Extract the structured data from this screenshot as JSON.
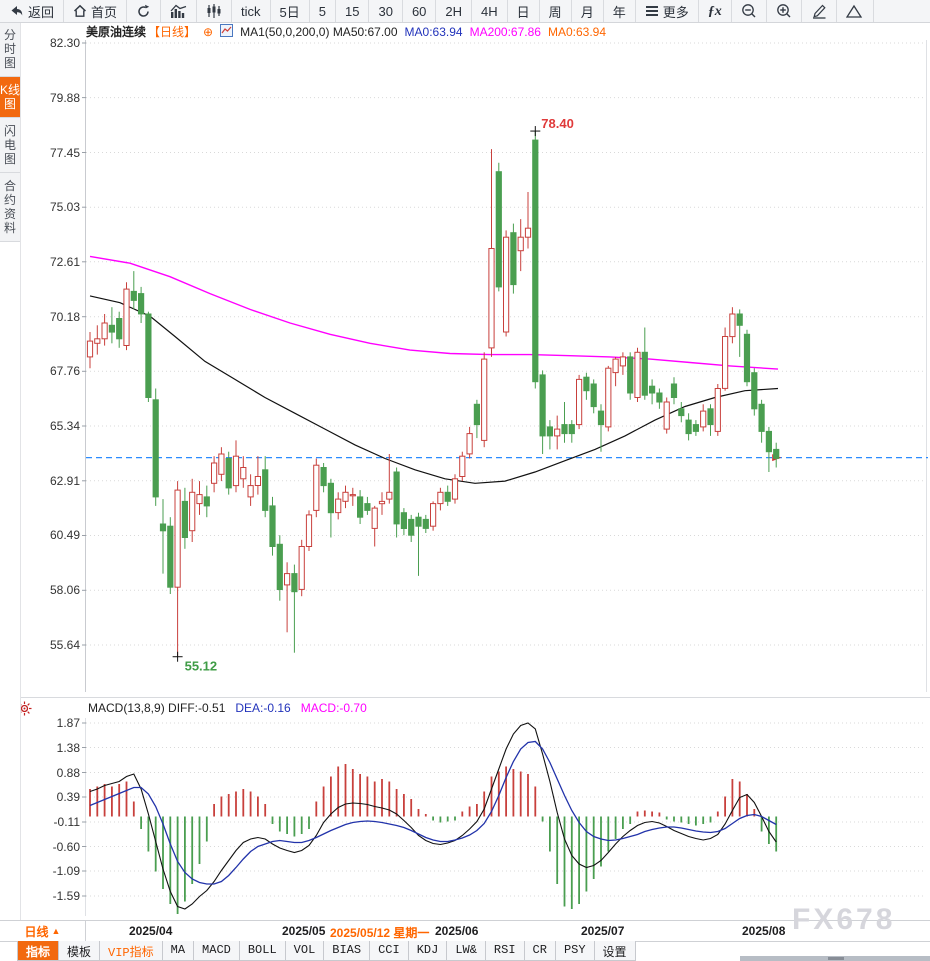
{
  "toolbar": {
    "items": [
      {
        "name": "back-button",
        "icon": "back",
        "label": "返回"
      },
      {
        "name": "home-button",
        "icon": "home",
        "label": "首页"
      },
      {
        "name": "refresh-button",
        "icon": "refresh",
        "label": ""
      },
      {
        "name": "trend-chart-button",
        "icon": "trend",
        "label": ""
      },
      {
        "name": "candle-chart-button",
        "icon": "candle",
        "label": ""
      },
      {
        "name": "interval-tick-button",
        "label": "tick"
      },
      {
        "name": "interval-5d-button",
        "label": "5日"
      },
      {
        "name": "interval-5m-button",
        "label": "5"
      },
      {
        "name": "interval-15m-button",
        "label": "15"
      },
      {
        "name": "interval-30m-button",
        "label": "30"
      },
      {
        "name": "interval-60m-button",
        "label": "60"
      },
      {
        "name": "interval-2h-button",
        "label": "2H"
      },
      {
        "name": "interval-4h-button",
        "label": "4H"
      },
      {
        "name": "interval-day-button",
        "label": "日"
      },
      {
        "name": "interval-week-button",
        "label": "周"
      },
      {
        "name": "interval-month-button",
        "label": "月"
      },
      {
        "name": "interval-year-button",
        "label": "年"
      },
      {
        "name": "more-button",
        "icon": "menu",
        "label": "更多"
      },
      {
        "name": "indicator-fx-button",
        "icon": "fx",
        "label": ""
      },
      {
        "name": "zoom-out-button",
        "icon": "zoomout",
        "label": ""
      },
      {
        "name": "zoom-in-button",
        "icon": "zoomin",
        "label": ""
      },
      {
        "name": "draw-button",
        "icon": "pencil",
        "label": ""
      },
      {
        "name": "shape-button",
        "icon": "shape",
        "label": ""
      }
    ]
  },
  "sidebar": {
    "items": [
      {
        "name": "sidebar-item-time-chart",
        "label": "分时图",
        "active": false
      },
      {
        "name": "sidebar-item-kline-chart",
        "label": "K线图",
        "active": true
      },
      {
        "name": "sidebar-item-flash-chart",
        "label": "闪电图",
        "active": false
      },
      {
        "name": "sidebar-item-contract-info",
        "label": "合约资料",
        "active": false
      }
    ]
  },
  "chart_title": {
    "symbol": "美原油连续",
    "period_tag": "【日线】",
    "add_icon": "⊕",
    "ma_settings": "MA1(50,0,200,0) MA50:67.00",
    "ma0_blue": "MA0:63.94",
    "ma200": "MA200:67.86",
    "ma0_orange": "MA0:63.94"
  },
  "macd_header": {
    "title": "MACD(13,8,9) DIFF:-0.51",
    "dea": "DEA:-0.16",
    "macd": "MACD:-0.70"
  },
  "x_axis": {
    "period_label": "日线",
    "period_arrow": "▲",
    "labels": [
      {
        "text": "2025/04",
        "index": 6
      },
      {
        "text": "2025/05",
        "index": 27
      },
      {
        "text": "2025/06",
        "index": 48
      },
      {
        "text": "2025/07",
        "index": 68
      },
      {
        "text": "2025/08",
        "index": 90
      }
    ],
    "crosshair_label": {
      "text": "2025/05/12 星期一",
      "index": 34
    }
  },
  "tabs": [
    {
      "label": "指标",
      "active": true,
      "vip": false
    },
    {
      "label": "模板",
      "active": false,
      "vip": false
    },
    {
      "label": "VIP指标",
      "active": false,
      "vip": true
    },
    {
      "label": "MA",
      "active": false,
      "vip": false
    },
    {
      "label": "MACD",
      "active": false,
      "vip": false
    },
    {
      "label": "BOLL",
      "active": false,
      "vip": false
    },
    {
      "label": "VOL",
      "active": false,
      "vip": false
    },
    {
      "label": "BIAS",
      "active": false,
      "vip": false
    },
    {
      "label": "CCI",
      "active": false,
      "vip": false
    },
    {
      "label": "KDJ",
      "active": false,
      "vip": false
    },
    {
      "label": "LW&",
      "active": false,
      "vip": false
    },
    {
      "label": "RSI",
      "active": false,
      "vip": false
    },
    {
      "label": "CR",
      "active": false,
      "vip": false
    },
    {
      "label": "PSY",
      "active": false,
      "vip": false
    },
    {
      "label": "设置",
      "active": false,
      "vip": false
    }
  ],
  "watermark": "FX678",
  "chart_data": {
    "type": "candlestick+macd",
    "title": "美原油连续 日线",
    "price_ticks": [
      82.3,
      79.88,
      77.45,
      75.03,
      72.61,
      70.18,
      67.76,
      65.34,
      62.91,
      60.49,
      58.06,
      55.64
    ],
    "macd_ticks": [
      1.87,
      1.38,
      0.88,
      0.39,
      -0.11,
      -0.6,
      -1.09,
      -1.59
    ],
    "last_price": 63.94,
    "high_marker": {
      "text": "78.40",
      "value": 78.4,
      "index": 61
    },
    "low_marker": {
      "text": "55.12",
      "value": 55.12,
      "index": 12
    },
    "colors": {
      "up": "#c8403c",
      "down": "#4a9e50",
      "ma50": "#111111",
      "ma200": "#ff00ff",
      "diff": "#111111",
      "dea": "#2233aa",
      "last_price_line": "#2b8cff",
      "accent": "#f2690f"
    },
    "candles": [
      [
        68.4,
        69.5,
        67.9,
        69.1
      ],
      [
        69.0,
        69.8,
        68.5,
        69.2
      ],
      [
        69.2,
        70.3,
        68.9,
        69.9
      ],
      [
        69.8,
        70.6,
        69.0,
        69.5
      ],
      [
        70.1,
        70.4,
        68.8,
        69.2
      ],
      [
        68.9,
        71.7,
        68.7,
        71.4
      ],
      [
        71.3,
        72.2,
        70.5,
        70.9
      ],
      [
        71.2,
        71.5,
        69.9,
        70.3
      ],
      [
        70.3,
        70.4,
        66.4,
        66.6
      ],
      [
        66.5,
        67.0,
        61.8,
        62.2
      ],
      [
        61.0,
        62.1,
        58.8,
        60.7
      ],
      [
        60.9,
        61.3,
        57.9,
        58.2
      ],
      [
        58.2,
        62.9,
        55.12,
        62.5
      ],
      [
        62.0,
        62.6,
        59.9,
        60.4
      ],
      [
        60.7,
        63.0,
        60.2,
        62.4
      ],
      [
        61.9,
        62.9,
        61.4,
        62.3
      ],
      [
        62.2,
        62.7,
        61.3,
        61.8
      ],
      [
        62.8,
        64.0,
        62.4,
        63.7
      ],
      [
        63.2,
        64.4,
        62.9,
        64.1
      ],
      [
        63.9,
        64.2,
        62.3,
        62.6
      ],
      [
        62.7,
        64.7,
        62.4,
        64.0
      ],
      [
        63.0,
        64.0,
        62.6,
        63.5
      ],
      [
        62.2,
        63.2,
        61.8,
        62.7
      ],
      [
        62.7,
        64.0,
        62.3,
        63.1
      ],
      [
        63.4,
        64.0,
        61.3,
        61.6
      ],
      [
        61.8,
        62.2,
        59.6,
        60.0
      ],
      [
        60.1,
        60.5,
        57.6,
        58.1
      ],
      [
        58.3,
        59.3,
        56.2,
        58.8
      ],
      [
        58.8,
        59.2,
        55.3,
        58.0
      ],
      [
        58.1,
        60.3,
        57.8,
        60.0
      ],
      [
        60.0,
        61.6,
        59.8,
        61.4
      ],
      [
        61.6,
        63.9,
        61.3,
        63.6
      ],
      [
        63.5,
        63.7,
        62.4,
        62.7
      ],
      [
        62.8,
        63.0,
        60.4,
        61.5
      ],
      [
        61.5,
        62.4,
        61.2,
        62.1
      ],
      [
        62.0,
        62.7,
        61.7,
        62.4
      ],
      [
        62.3,
        62.6,
        61.8,
        62.3
      ],
      [
        62.2,
        62.5,
        61.0,
        61.3
      ],
      [
        61.9,
        62.2,
        61.4,
        61.6
      ],
      [
        60.8,
        61.8,
        60.0,
        61.7
      ],
      [
        61.9,
        62.4,
        61.4,
        62.0
      ],
      [
        62.1,
        64.1,
        61.9,
        62.4
      ],
      [
        63.3,
        63.5,
        60.4,
        61.0
      ],
      [
        61.5,
        61.7,
        60.5,
        60.8
      ],
      [
        61.2,
        61.4,
        60.2,
        60.5
      ],
      [
        61.3,
        61.5,
        58.7,
        60.9
      ],
      [
        61.2,
        61.4,
        60.6,
        60.8
      ],
      [
        60.9,
        62.0,
        60.7,
        61.9
      ],
      [
        61.9,
        62.6,
        61.6,
        62.4
      ],
      [
        62.4,
        62.7,
        61.8,
        62.0
      ],
      [
        62.1,
        63.2,
        61.9,
        63.0
      ],
      [
        63.1,
        64.2,
        62.9,
        64.0
      ],
      [
        64.1,
        65.3,
        63.9,
        65.0
      ],
      [
        66.3,
        66.5,
        64.8,
        65.4
      ],
      [
        64.7,
        68.6,
        64.4,
        68.3
      ],
      [
        68.8,
        77.6,
        68.4,
        73.2
      ],
      [
        76.6,
        77.0,
        71.3,
        71.5
      ],
      [
        69.5,
        74.0,
        69.3,
        73.7
      ],
      [
        73.9,
        74.3,
        71.2,
        71.6
      ],
      [
        73.1,
        74.5,
        72.2,
        73.7
      ],
      [
        73.7,
        75.7,
        73.2,
        74.1
      ],
      [
        78.0,
        78.4,
        67.0,
        67.3
      ],
      [
        67.6,
        67.8,
        64.1,
        64.9
      ],
      [
        65.3,
        65.6,
        64.3,
        64.9
      ],
      [
        64.9,
        65.8,
        64.3,
        65.2
      ],
      [
        65.4,
        66.4,
        64.6,
        65.0
      ],
      [
        65.4,
        65.6,
        64.6,
        65.0
      ],
      [
        65.4,
        67.6,
        65.2,
        67.4
      ],
      [
        67.5,
        67.7,
        66.5,
        66.9
      ],
      [
        67.2,
        67.4,
        65.9,
        66.2
      ],
      [
        66.0,
        66.3,
        64.2,
        65.4
      ],
      [
        65.3,
        68.0,
        65.1,
        67.9
      ],
      [
        67.7,
        68.4,
        67.1,
        68.3
      ],
      [
        68.0,
        68.6,
        67.6,
        68.4
      ],
      [
        68.4,
        68.6,
        66.5,
        66.8
      ],
      [
        66.6,
        68.8,
        66.4,
        68.6
      ],
      [
        68.6,
        69.7,
        66.5,
        66.7
      ],
      [
        67.1,
        67.4,
        66.3,
        66.8
      ],
      [
        66.8,
        67.0,
        66.1,
        66.4
      ],
      [
        65.2,
        66.6,
        65.0,
        66.4
      ],
      [
        67.2,
        67.5,
        66.3,
        66.6
      ],
      [
        66.1,
        66.4,
        65.5,
        65.8
      ],
      [
        65.6,
        65.9,
        64.7,
        65.0
      ],
      [
        65.4,
        65.6,
        64.9,
        65.1
      ],
      [
        65.3,
        66.3,
        65.1,
        66.0
      ],
      [
        66.1,
        66.3,
        64.9,
        65.4
      ],
      [
        65.1,
        67.2,
        64.9,
        67.0
      ],
      [
        67.0,
        69.7,
        66.9,
        69.3
      ],
      [
        69.3,
        70.6,
        69.0,
        70.3
      ],
      [
        70.3,
        70.5,
        68.4,
        69.8
      ],
      [
        69.4,
        69.6,
        67.1,
        67.3
      ],
      [
        67.7,
        67.9,
        65.8,
        66.1
      ],
      [
        66.3,
        66.5,
        64.6,
        65.1
      ],
      [
        65.1,
        65.3,
        63.3,
        64.2
      ],
      [
        64.3,
        64.6,
        63.5,
        63.9
      ]
    ],
    "ma50_points": [
      [
        90,
        71.1
      ],
      [
        120,
        70.8
      ],
      [
        150,
        70.2
      ],
      [
        175,
        69.3
      ],
      [
        205,
        68.2
      ],
      [
        235,
        67.4
      ],
      [
        265,
        66.6
      ],
      [
        295,
        65.9
      ],
      [
        325,
        65.2
      ],
      [
        355,
        64.5
      ],
      [
        385,
        63.9
      ],
      [
        415,
        63.4
      ],
      [
        445,
        63.0
      ],
      [
        475,
        62.8
      ],
      [
        505,
        62.9
      ],
      [
        535,
        63.3
      ],
      [
        565,
        63.8
      ],
      [
        595,
        64.3
      ],
      [
        625,
        64.9
      ],
      [
        655,
        65.6
      ],
      [
        685,
        66.2
      ],
      [
        715,
        66.6
      ],
      [
        745,
        66.9
      ],
      [
        778,
        67.0
      ]
    ],
    "ma200_points": [
      [
        90,
        72.85
      ],
      [
        130,
        72.55
      ],
      [
        170,
        71.95
      ],
      [
        210,
        71.2
      ],
      [
        250,
        70.5
      ],
      [
        290,
        69.9
      ],
      [
        330,
        69.4
      ],
      [
        370,
        69.0
      ],
      [
        410,
        68.7
      ],
      [
        450,
        68.55
      ],
      [
        490,
        68.5
      ],
      [
        530,
        68.5
      ],
      [
        570,
        68.45
      ],
      [
        610,
        68.4
      ],
      [
        650,
        68.3
      ],
      [
        690,
        68.15
      ],
      [
        730,
        68.0
      ],
      [
        778,
        67.86
      ]
    ],
    "macd_hist": [
      0.55,
      0.6,
      0.65,
      0.6,
      0.65,
      0.7,
      0.3,
      -0.25,
      -0.7,
      -1.1,
      -1.45,
      -1.75,
      -1.95,
      -1.7,
      -1.35,
      -0.95,
      -0.5,
      0.25,
      0.4,
      0.45,
      0.5,
      0.55,
      0.5,
      0.4,
      0.25,
      -0.15,
      -0.3,
      -0.35,
      -0.4,
      -0.35,
      -0.25,
      0.3,
      0.6,
      0.8,
      1.0,
      1.05,
      0.95,
      0.85,
      0.8,
      0.7,
      0.75,
      0.7,
      0.55,
      0.45,
      0.35,
      0.15,
      0.05,
      -0.08,
      -0.12,
      -0.1,
      -0.08,
      0.1,
      0.2,
      0.25,
      0.5,
      0.8,
      0.9,
      1.0,
      0.95,
      0.9,
      0.85,
      0.6,
      -0.1,
      -0.7,
      -1.35,
      -1.8,
      -1.85,
      -1.75,
      -1.5,
      -1.25,
      -1.0,
      -0.7,
      -0.45,
      -0.25,
      -0.15,
      0.1,
      0.12,
      0.1,
      0.08,
      -0.06,
      -0.1,
      -0.12,
      -0.15,
      -0.18,
      -0.15,
      -0.12,
      0.1,
      0.4,
      0.75,
      0.7,
      0.45,
      0.15,
      -0.3,
      -0.55,
      -0.7
    ],
    "macd_diff": [
      0.5,
      0.55,
      0.62,
      0.66,
      0.7,
      0.8,
      0.85,
      0.55,
      0.05,
      -0.5,
      -1.05,
      -1.5,
      -1.8,
      -1.85,
      -1.75,
      -1.6,
      -1.48,
      -1.3,
      -1.08,
      -0.88,
      -0.68,
      -0.52,
      -0.45,
      -0.42,
      -0.45,
      -0.55,
      -0.63,
      -0.68,
      -0.72,
      -0.68,
      -0.58,
      -0.38,
      -0.12,
      0.05,
      0.18,
      0.25,
      0.27,
      0.26,
      0.24,
      0.2,
      0.17,
      0.13,
      0.05,
      -0.08,
      -0.22,
      -0.38,
      -0.48,
      -0.54,
      -0.56,
      -0.53,
      -0.48,
      -0.38,
      -0.25,
      -0.1,
      0.15,
      0.55,
      0.95,
      1.35,
      1.65,
      1.82,
      1.87,
      1.75,
      1.25,
      0.7,
      0.08,
      -0.45,
      -0.78,
      -0.95,
      -1.02,
      -0.98,
      -0.88,
      -0.72,
      -0.55,
      -0.4,
      -0.28,
      -0.18,
      -0.12,
      -0.1,
      -0.13,
      -0.2,
      -0.28,
      -0.34,
      -0.4,
      -0.44,
      -0.47,
      -0.44,
      -0.36,
      -0.15,
      0.12,
      0.38,
      0.44,
      0.28,
      0.0,
      -0.3,
      -0.51
    ],
    "macd_dea": [
      0.22,
      0.28,
      0.34,
      0.4,
      0.46,
      0.52,
      0.58,
      0.58,
      0.45,
      0.2,
      -0.15,
      -0.55,
      -0.9,
      -1.12,
      -1.25,
      -1.32,
      -1.35,
      -1.35,
      -1.3,
      -1.18,
      -1.02,
      -0.85,
      -0.7,
      -0.6,
      -0.55,
      -0.5,
      -0.48,
      -0.5,
      -0.52,
      -0.52,
      -0.48,
      -0.42,
      -0.35,
      -0.28,
      -0.22,
      -0.16,
      -0.12,
      -0.1,
      -0.09,
      -0.1,
      -0.12,
      -0.15,
      -0.18,
      -0.22,
      -0.28,
      -0.35,
      -0.42,
      -0.47,
      -0.5,
      -0.5,
      -0.47,
      -0.43,
      -0.37,
      -0.28,
      -0.14,
      0.1,
      0.42,
      0.78,
      1.1,
      1.35,
      1.48,
      1.5,
      1.35,
      1.08,
      0.75,
      0.42,
      0.12,
      -0.12,
      -0.3,
      -0.4,
      -0.45,
      -0.48,
      -0.47,
      -0.44,
      -0.4,
      -0.36,
      -0.3,
      -0.26,
      -0.23,
      -0.21,
      -0.21,
      -0.23,
      -0.26,
      -0.29,
      -0.31,
      -0.32,
      -0.3,
      -0.24,
      -0.14,
      -0.04,
      0.02,
      0.04,
      0.0,
      -0.08,
      -0.16
    ]
  }
}
